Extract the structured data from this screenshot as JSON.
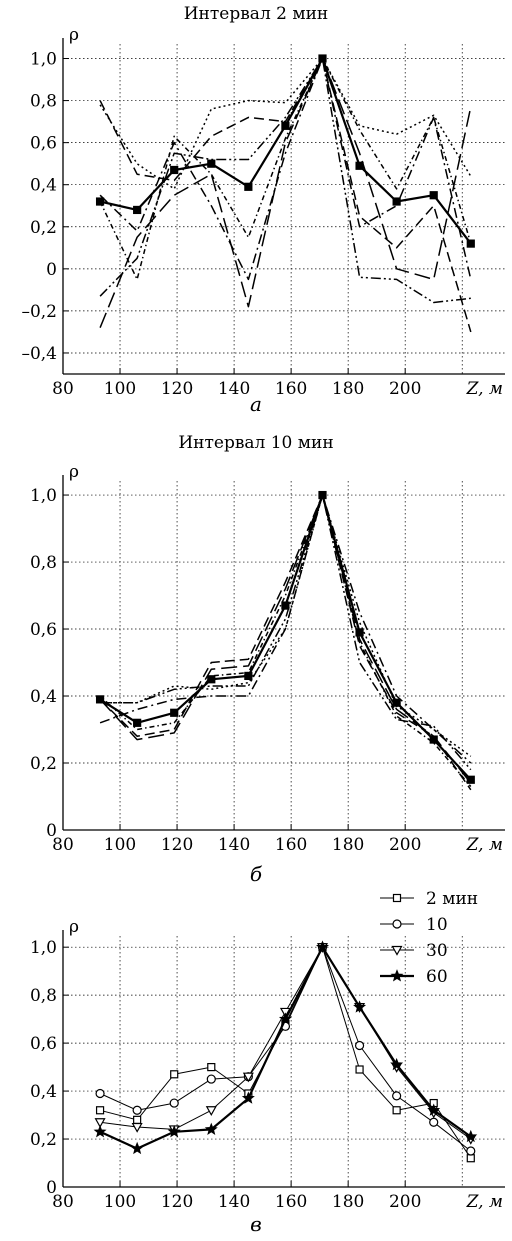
{
  "chart_data": [
    {
      "panel": "a",
      "type": "line",
      "title": "Интервал 2 мин",
      "letter": "а",
      "ylabel": "ρ",
      "xlabel": "Z, м",
      "xlim": [
        80,
        235
      ],
      "ylim": [
        -0.5,
        1.05
      ],
      "grid": true,
      "x_ticks": [
        80,
        100,
        120,
        140,
        160,
        180,
        200
      ],
      "y_ticks": [
        -0.4,
        -0.2,
        0,
        0.2,
        0.4,
        0.6,
        0.8,
        1.0
      ],
      "y_tick_labels": [
        "–0,4",
        "–0,2",
        "0",
        "0,2",
        "0,4",
        "0,6",
        "0,8",
        "1,0"
      ],
      "x": [
        93,
        106,
        119,
        132,
        145,
        158,
        171,
        184,
        197,
        210,
        223
      ],
      "series": [
        {
          "style": "mean",
          "values": [
            0.32,
            0.28,
            0.47,
            0.5,
            0.39,
            0.68,
            1.0,
            0.49,
            0.32,
            0.35,
            0.12
          ]
        },
        {
          "style": "dashed",
          "values": [
            0.8,
            0.45,
            0.42,
            0.63,
            0.72,
            0.7,
            1.0,
            0.25,
            0.1,
            0.3,
            -0.3
          ]
        },
        {
          "style": "dotted",
          "values": [
            0.78,
            0.5,
            0.38,
            0.76,
            0.8,
            0.79,
            1.0,
            0.68,
            0.64,
            0.73,
            0.44
          ]
        },
        {
          "style": "dashdot",
          "values": [
            0.35,
            0.18,
            0.6,
            0.3,
            -0.05,
            0.55,
            1.0,
            0.2,
            0.3,
            0.72,
            -0.05
          ]
        },
        {
          "style": "longdash",
          "values": [
            -0.28,
            0.15,
            0.35,
            0.45,
            -0.18,
            0.6,
            1.0,
            0.55,
            0.0,
            -0.05,
            0.77
          ]
        },
        {
          "style": "dashdotdot",
          "values": [
            -0.13,
            0.05,
            0.55,
            0.52,
            0.52,
            0.72,
            1.0,
            -0.04,
            -0.05,
            -0.16,
            -0.14
          ]
        },
        {
          "style": "shortdot",
          "values": [
            0.32,
            -0.05,
            0.63,
            0.45,
            0.15,
            0.62,
            1.0,
            0.66,
            0.38,
            0.72,
            0.12
          ]
        }
      ]
    },
    {
      "panel": "b",
      "type": "line",
      "title": "Интервал 10 мин",
      "letter": "б",
      "ylabel": "ρ",
      "xlabel": "Z, м",
      "xlim": [
        80,
        235
      ],
      "ylim": [
        0,
        1.03
      ],
      "grid": true,
      "x_ticks": [
        80,
        100,
        120,
        140,
        160,
        180,
        200
      ],
      "y_ticks": [
        0,
        0.2,
        0.4,
        0.6,
        0.8,
        1.0
      ],
      "y_tick_labels": [
        "0",
        "0,2",
        "0,4",
        "0,6",
        "0,8",
        "1,0"
      ],
      "x": [
        93,
        106,
        119,
        132,
        145,
        158,
        171,
        184,
        197,
        210,
        223
      ],
      "series": [
        {
          "style": "mean",
          "values": [
            0.39,
            0.32,
            0.35,
            0.45,
            0.46,
            0.67,
            1.0,
            0.59,
            0.38,
            0.27,
            0.15
          ]
        },
        {
          "style": "dashed",
          "values": [
            0.39,
            0.28,
            0.3,
            0.5,
            0.51,
            0.74,
            1.0,
            0.55,
            0.35,
            0.28,
            0.12
          ]
        },
        {
          "style": "dotted",
          "values": [
            0.38,
            0.38,
            0.43,
            0.42,
            0.44,
            0.6,
            1.0,
            0.62,
            0.37,
            0.3,
            0.22
          ]
        },
        {
          "style": "dashdot",
          "values": [
            0.32,
            0.36,
            0.39,
            0.4,
            0.4,
            0.6,
            1.0,
            0.65,
            0.4,
            0.3,
            0.2
          ]
        },
        {
          "style": "longdash",
          "values": [
            0.39,
            0.27,
            0.29,
            0.48,
            0.49,
            0.72,
            1.0,
            0.57,
            0.36,
            0.28,
            0.14
          ]
        },
        {
          "style": "dashdotdot",
          "values": [
            0.38,
            0.38,
            0.42,
            0.43,
            0.43,
            0.63,
            1.0,
            0.5,
            0.33,
            0.31,
            0.18
          ]
        },
        {
          "style": "shortdot",
          "values": [
            0.4,
            0.3,
            0.32,
            0.46,
            0.47,
            0.7,
            1.0,
            0.56,
            0.34,
            0.26,
            0.13
          ]
        }
      ]
    },
    {
      "panel": "c",
      "type": "line",
      "title": "",
      "letter": "в",
      "ylabel": "ρ",
      "xlabel": "Z, м",
      "xlim": [
        80,
        235
      ],
      "ylim": [
        0,
        1.03
      ],
      "grid": true,
      "x_ticks": [
        80,
        100,
        120,
        140,
        160,
        180,
        200
      ],
      "y_ticks": [
        0,
        0.2,
        0.4,
        0.6,
        0.8,
        1.0
      ],
      "y_tick_labels": [
        "0",
        "0,2",
        "0,4",
        "0,6",
        "0,8",
        "1,0"
      ],
      "x": [
        93,
        106,
        119,
        132,
        145,
        158,
        171,
        184,
        197,
        210,
        223
      ],
      "legend": "top-right",
      "series": [
        {
          "name": "2 мин",
          "marker": "square",
          "values": [
            0.32,
            0.28,
            0.47,
            0.5,
            0.39,
            0.68,
            1.0,
            0.49,
            0.32,
            0.35,
            0.12
          ]
        },
        {
          "name": "10",
          "marker": "circle",
          "values": [
            0.39,
            0.32,
            0.35,
            0.45,
            0.46,
            0.67,
            1.0,
            0.59,
            0.38,
            0.27,
            0.15
          ]
        },
        {
          "name": "30",
          "marker": "triangle-down",
          "values": [
            0.27,
            0.25,
            0.24,
            0.32,
            0.46,
            0.73,
            1.0,
            0.75,
            0.5,
            0.31,
            0.2
          ]
        },
        {
          "name": "60",
          "marker": "star",
          "values": [
            0.23,
            0.16,
            0.23,
            0.24,
            0.37,
            0.7,
            1.0,
            0.75,
            0.51,
            0.32,
            0.21
          ]
        }
      ]
    }
  ]
}
